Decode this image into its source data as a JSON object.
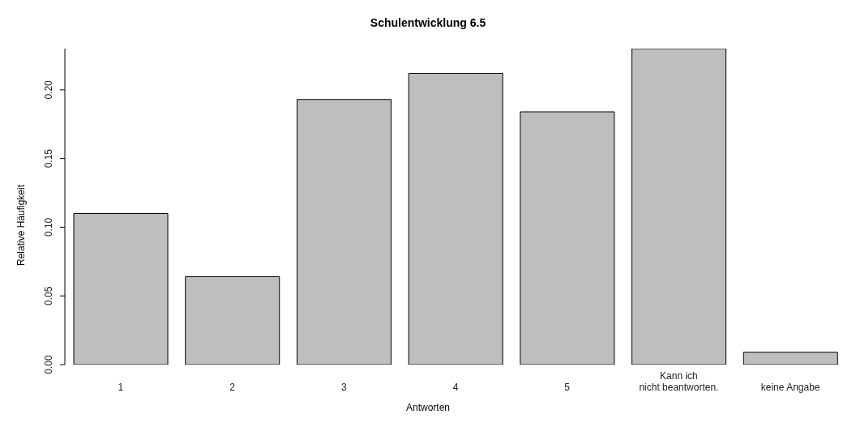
{
  "chart_data": {
    "type": "bar",
    "title": "Schulentwicklung 6.5",
    "xlabel": "Antworten",
    "ylabel": "Relative Häufigkeit",
    "categories": [
      "1",
      "2",
      "3",
      "4",
      "5",
      "Kann ich\nnicht beantworten.",
      "keine Angabe"
    ],
    "values": [
      0.11,
      0.064,
      0.193,
      0.212,
      0.184,
      0.23,
      0.009
    ],
    "color": "#bebebe",
    "ylim": [
      0,
      0.23
    ],
    "yticks": [
      {
        "value": 0,
        "label": "0.00"
      },
      {
        "value": 0.05,
        "label": "0.05"
      },
      {
        "value": 0.1,
        "label": "0.10"
      },
      {
        "value": 0.15,
        "label": "0.15"
      },
      {
        "value": 0.2,
        "label": "0.20"
      }
    ],
    "grid": false,
    "legend": false
  }
}
